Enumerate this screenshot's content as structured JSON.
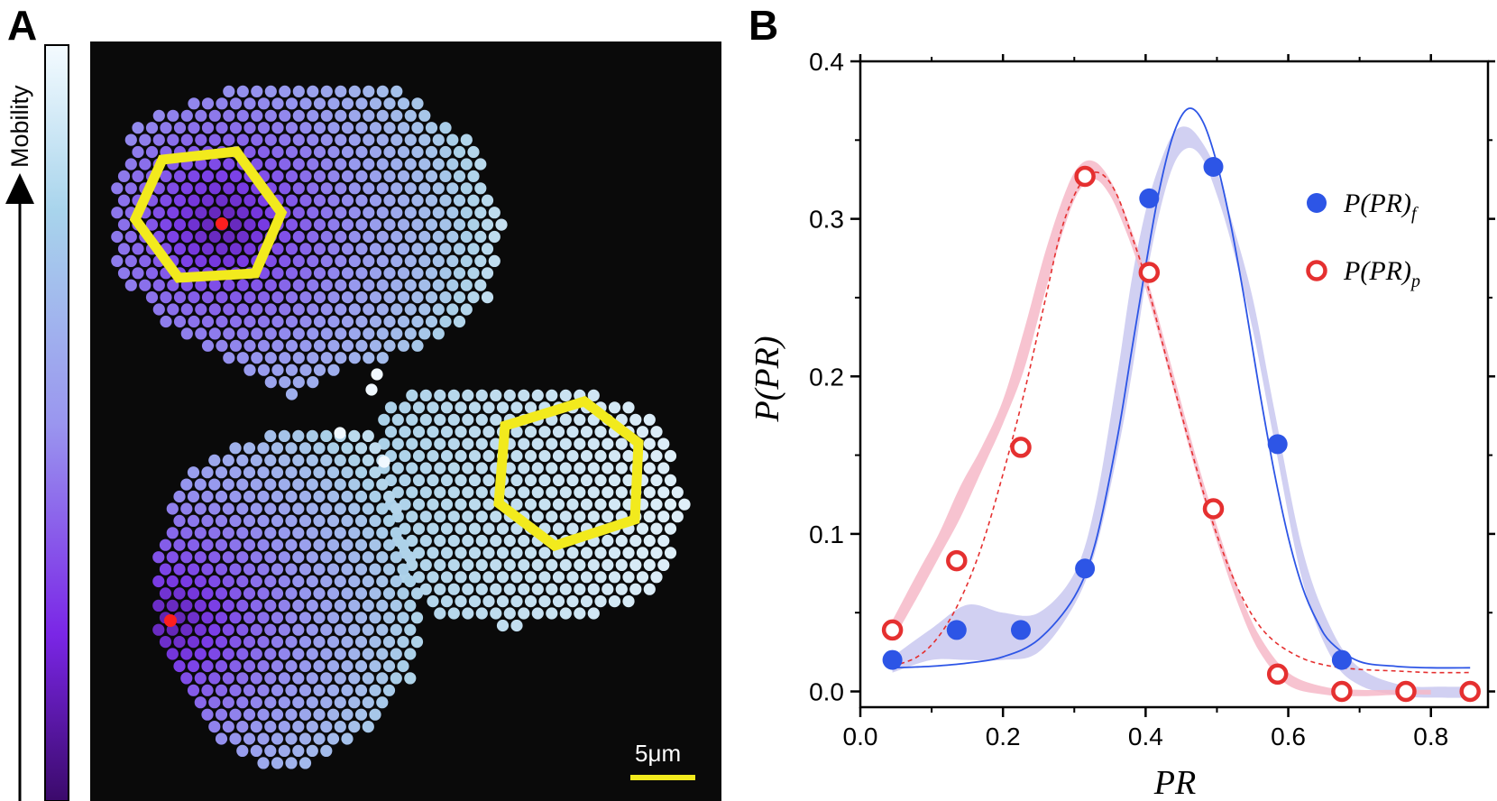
{
  "panels": {
    "a_label": "A",
    "b_label": "B"
  },
  "panel_a": {
    "colorbar_label": "Mobility",
    "scale_bar_label": "5μm",
    "colors": {
      "background": "#0a0a0a",
      "highlight": "#f2ea1d",
      "tagged_particle": "#ff1f1f",
      "low_mobility": "#3b0a6b",
      "high_mobility": "#f4fbff"
    }
  },
  "chart_data": {
    "type": "scatter",
    "xlabel": "PR",
    "ylabel": "P(PR)",
    "xlim": [
      0.0,
      0.88
    ],
    "ylim": [
      -0.01,
      0.4
    ],
    "x_ticks": [
      "0.0",
      "0.2",
      "0.4",
      "0.6",
      "0.8"
    ],
    "y_ticks": [
      "0.0",
      "0.1",
      "0.2",
      "0.3",
      "0.4"
    ],
    "legend_position": "right",
    "series": [
      {
        "name": "P(PR)_f",
        "legend_main": "P(PR)",
        "legend_sub": "f",
        "marker": "filled-circle",
        "color": "#2d55e6",
        "x": [
          0.045,
          0.135,
          0.225,
          0.315,
          0.405,
          0.495,
          0.585,
          0.675,
          0.765,
          0.855
        ],
        "values": [
          0.02,
          0.039,
          0.039,
          0.078,
          0.313,
          0.333,
          0.157,
          0.02,
          0.0,
          0.0
        ],
        "fit_x": [
          0.045,
          0.1,
          0.15,
          0.2,
          0.25,
          0.3,
          0.33,
          0.36,
          0.38,
          0.4,
          0.42,
          0.44,
          0.46,
          0.48,
          0.5,
          0.52,
          0.54,
          0.56,
          0.58,
          0.6,
          0.62,
          0.64,
          0.66,
          0.7,
          0.75,
          0.8,
          0.855
        ],
        "fit_values": [
          0.015,
          0.016,
          0.018,
          0.022,
          0.033,
          0.06,
          0.095,
          0.16,
          0.215,
          0.27,
          0.32,
          0.355,
          0.37,
          0.362,
          0.335,
          0.295,
          0.245,
          0.19,
          0.14,
          0.098,
          0.066,
          0.045,
          0.031,
          0.019,
          0.016,
          0.015,
          0.015
        ],
        "band_x": [
          0.045,
          0.1,
          0.15,
          0.2,
          0.25,
          0.3,
          0.33,
          0.36,
          0.38,
          0.4,
          0.42,
          0.44,
          0.46,
          0.48,
          0.5,
          0.52,
          0.55,
          0.58,
          0.62,
          0.66,
          0.7,
          0.76,
          0.82,
          0.855
        ],
        "band_upper": [
          0.022,
          0.04,
          0.055,
          0.05,
          0.05,
          0.075,
          0.12,
          0.2,
          0.26,
          0.305,
          0.335,
          0.355,
          0.358,
          0.348,
          0.33,
          0.3,
          0.25,
          0.18,
          0.09,
          0.04,
          0.015,
          0.004,
          0.003,
          0.003
        ],
        "band_lower": [
          0.012,
          0.02,
          0.02,
          0.02,
          0.025,
          0.055,
          0.09,
          0.15,
          0.2,
          0.26,
          0.305,
          0.335,
          0.345,
          0.338,
          0.315,
          0.285,
          0.23,
          0.16,
          0.07,
          0.022,
          0.004,
          -0.003,
          -0.004,
          -0.004
        ],
        "band_color": "#c9c8f0"
      },
      {
        "name": "P(PR)_p",
        "legend_main": "P(PR)",
        "legend_sub": "p",
        "marker": "open-circle",
        "color": "#e53030",
        "x": [
          0.045,
          0.135,
          0.225,
          0.315,
          0.405,
          0.495,
          0.585,
          0.675,
          0.765,
          0.855
        ],
        "values": [
          0.039,
          0.083,
          0.155,
          0.327,
          0.266,
          0.116,
          0.011,
          0.0,
          0.0,
          0.0
        ],
        "fit_x": [
          0.045,
          0.08,
          0.11,
          0.14,
          0.17,
          0.2,
          0.23,
          0.26,
          0.28,
          0.3,
          0.32,
          0.34,
          0.36,
          0.38,
          0.4,
          0.43,
          0.46,
          0.49,
          0.52,
          0.55,
          0.58,
          0.62,
          0.66,
          0.7,
          0.75,
          0.8,
          0.855
        ],
        "fit_values": [
          0.016,
          0.022,
          0.035,
          0.058,
          0.092,
          0.138,
          0.19,
          0.25,
          0.29,
          0.315,
          0.328,
          0.328,
          0.315,
          0.29,
          0.262,
          0.21,
          0.16,
          0.113,
          0.075,
          0.048,
          0.032,
          0.021,
          0.016,
          0.014,
          0.013,
          0.012,
          0.012
        ],
        "band_x": [
          0.045,
          0.08,
          0.11,
          0.14,
          0.17,
          0.2,
          0.23,
          0.26,
          0.29,
          0.31,
          0.33,
          0.35,
          0.37,
          0.39,
          0.41,
          0.44,
          0.47,
          0.5,
          0.53,
          0.56,
          0.6,
          0.65,
          0.7,
          0.76,
          0.8
        ],
        "band_upper": [
          0.045,
          0.075,
          0.1,
          0.13,
          0.155,
          0.185,
          0.23,
          0.28,
          0.32,
          0.335,
          0.336,
          0.325,
          0.305,
          0.28,
          0.25,
          0.2,
          0.15,
          0.105,
          0.065,
          0.035,
          0.012,
          0.003,
          0.001,
          0.001,
          0.001
        ],
        "band_lower": [
          0.032,
          0.06,
          0.085,
          0.11,
          0.14,
          0.17,
          0.205,
          0.255,
          0.3,
          0.32,
          0.325,
          0.315,
          0.295,
          0.27,
          0.24,
          0.19,
          0.14,
          0.095,
          0.055,
          0.025,
          0.004,
          -0.002,
          -0.003,
          -0.002,
          -0.002
        ],
        "band_color": "#f6b9c8"
      }
    ]
  }
}
